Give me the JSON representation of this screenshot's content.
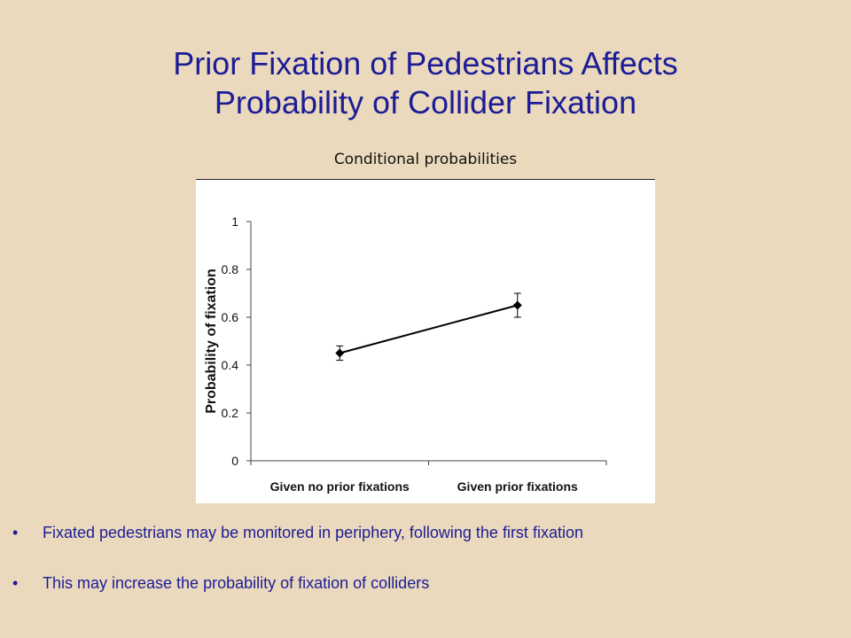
{
  "slide": {
    "title_line1": "Prior Fixation of Pedestrians Affects",
    "title_line2": "Probability of Collider Fixation",
    "caption": "Conditional probabilities",
    "bullet_glyph": "•",
    "bullets": [
      "Fixated pedestrians may be monitored in periphery, following the first fixation",
      "This may increase the probability of fixation of colliders"
    ]
  },
  "colors": {
    "background": "#ead9bc",
    "title": "#1c1c96",
    "series": "#000000"
  },
  "chart_data": {
    "type": "line",
    "categories": [
      "Given no prior fixations",
      "Given prior fixations"
    ],
    "series": [
      {
        "values": [
          0.45,
          0.65
        ],
        "error_low": [
          0.42,
          0.6
        ],
        "error_high": [
          0.48,
          0.7
        ],
        "marker": "diamond"
      }
    ],
    "ylabel": "Probability of fixation",
    "xlabel": "",
    "ylim": [
      0,
      1
    ],
    "yticks": [
      0,
      0.2,
      0.4,
      0.6,
      0.8,
      1
    ],
    "ytick_labels": [
      "0",
      "0.2",
      "0.4",
      "0.6",
      "0.8",
      "1"
    ],
    "grid": false,
    "legend": "none"
  }
}
